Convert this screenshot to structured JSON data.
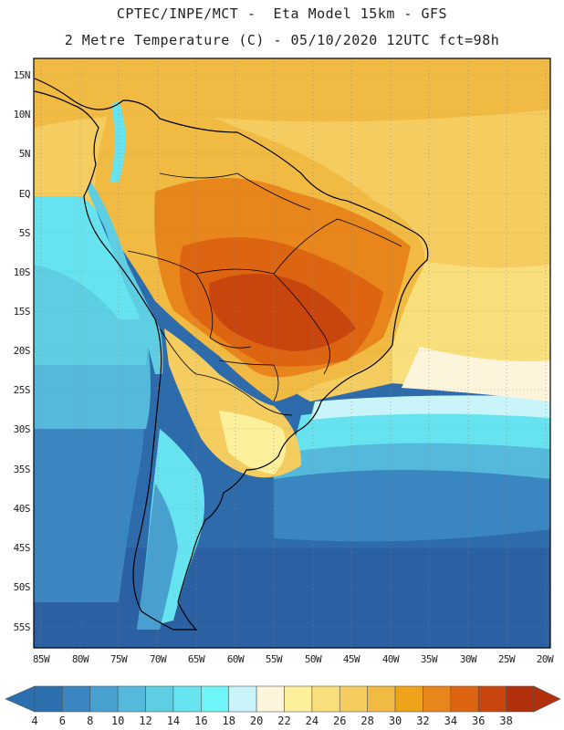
{
  "header": {
    "title_line1": "CPTEC/INPE/MCT -  Eta Model 15km - GFS",
    "title_line2": "2 Metre Temperature (C) - 05/10/2020 12UTC fct=98h"
  },
  "map": {
    "lat_labels": [
      "15N",
      "10N",
      "5N",
      "EQ",
      "5S",
      "10S",
      "15S",
      "20S",
      "25S",
      "30S",
      "35S",
      "40S",
      "45S",
      "50S",
      "55S"
    ],
    "lon_labels": [
      "85W",
      "80W",
      "75W",
      "70W",
      "65W",
      "60W",
      "55W",
      "50W",
      "45W",
      "40W",
      "35W",
      "30W",
      "25W",
      "20W"
    ]
  },
  "colorbar": {
    "labels": [
      "4",
      "6",
      "8",
      "10",
      "12",
      "14",
      "16",
      "18",
      "20",
      "22",
      "24",
      "26",
      "28",
      "30",
      "32",
      "34",
      "36",
      "38"
    ],
    "colors": [
      "#2b6fae",
      "#3a86c0",
      "#47a0cf",
      "#55b9dc",
      "#5ecfe3",
      "#66e3ee",
      "#6ff5f7",
      "#c8f4fa",
      "#fdf4dc",
      "#fdf09c",
      "#f8df7c",
      "#f4cc60",
      "#f0ba43",
      "#eea41a",
      "#e8861c",
      "#dd6512",
      "#c8460e",
      "#b2300b"
    ]
  }
}
